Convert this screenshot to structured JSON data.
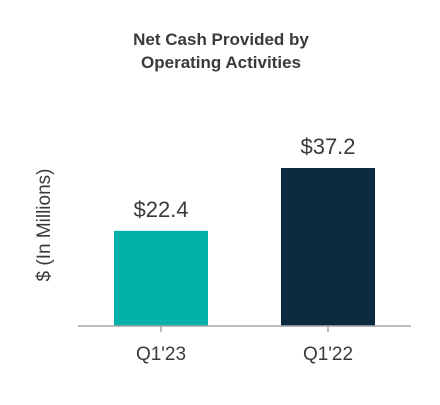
{
  "chart_data": {
    "type": "bar",
    "title_lines": [
      "Net Cash Provided by",
      "Operating Activities"
    ],
    "ylabel": "$ (In Millions)",
    "xlabel": "",
    "categories": [
      "Q1'23",
      "Q1'22"
    ],
    "values": [
      22.4,
      37.2
    ],
    "value_labels": [
      "$22.4",
      "$37.2"
    ],
    "colors": [
      "#00b2a9",
      "#0d2b40"
    ],
    "ylim": [
      0,
      37.2
    ],
    "grid": false,
    "legend": "none"
  },
  "colors": {
    "axis": "#a6a6a6",
    "text": "#3a3a3a"
  }
}
